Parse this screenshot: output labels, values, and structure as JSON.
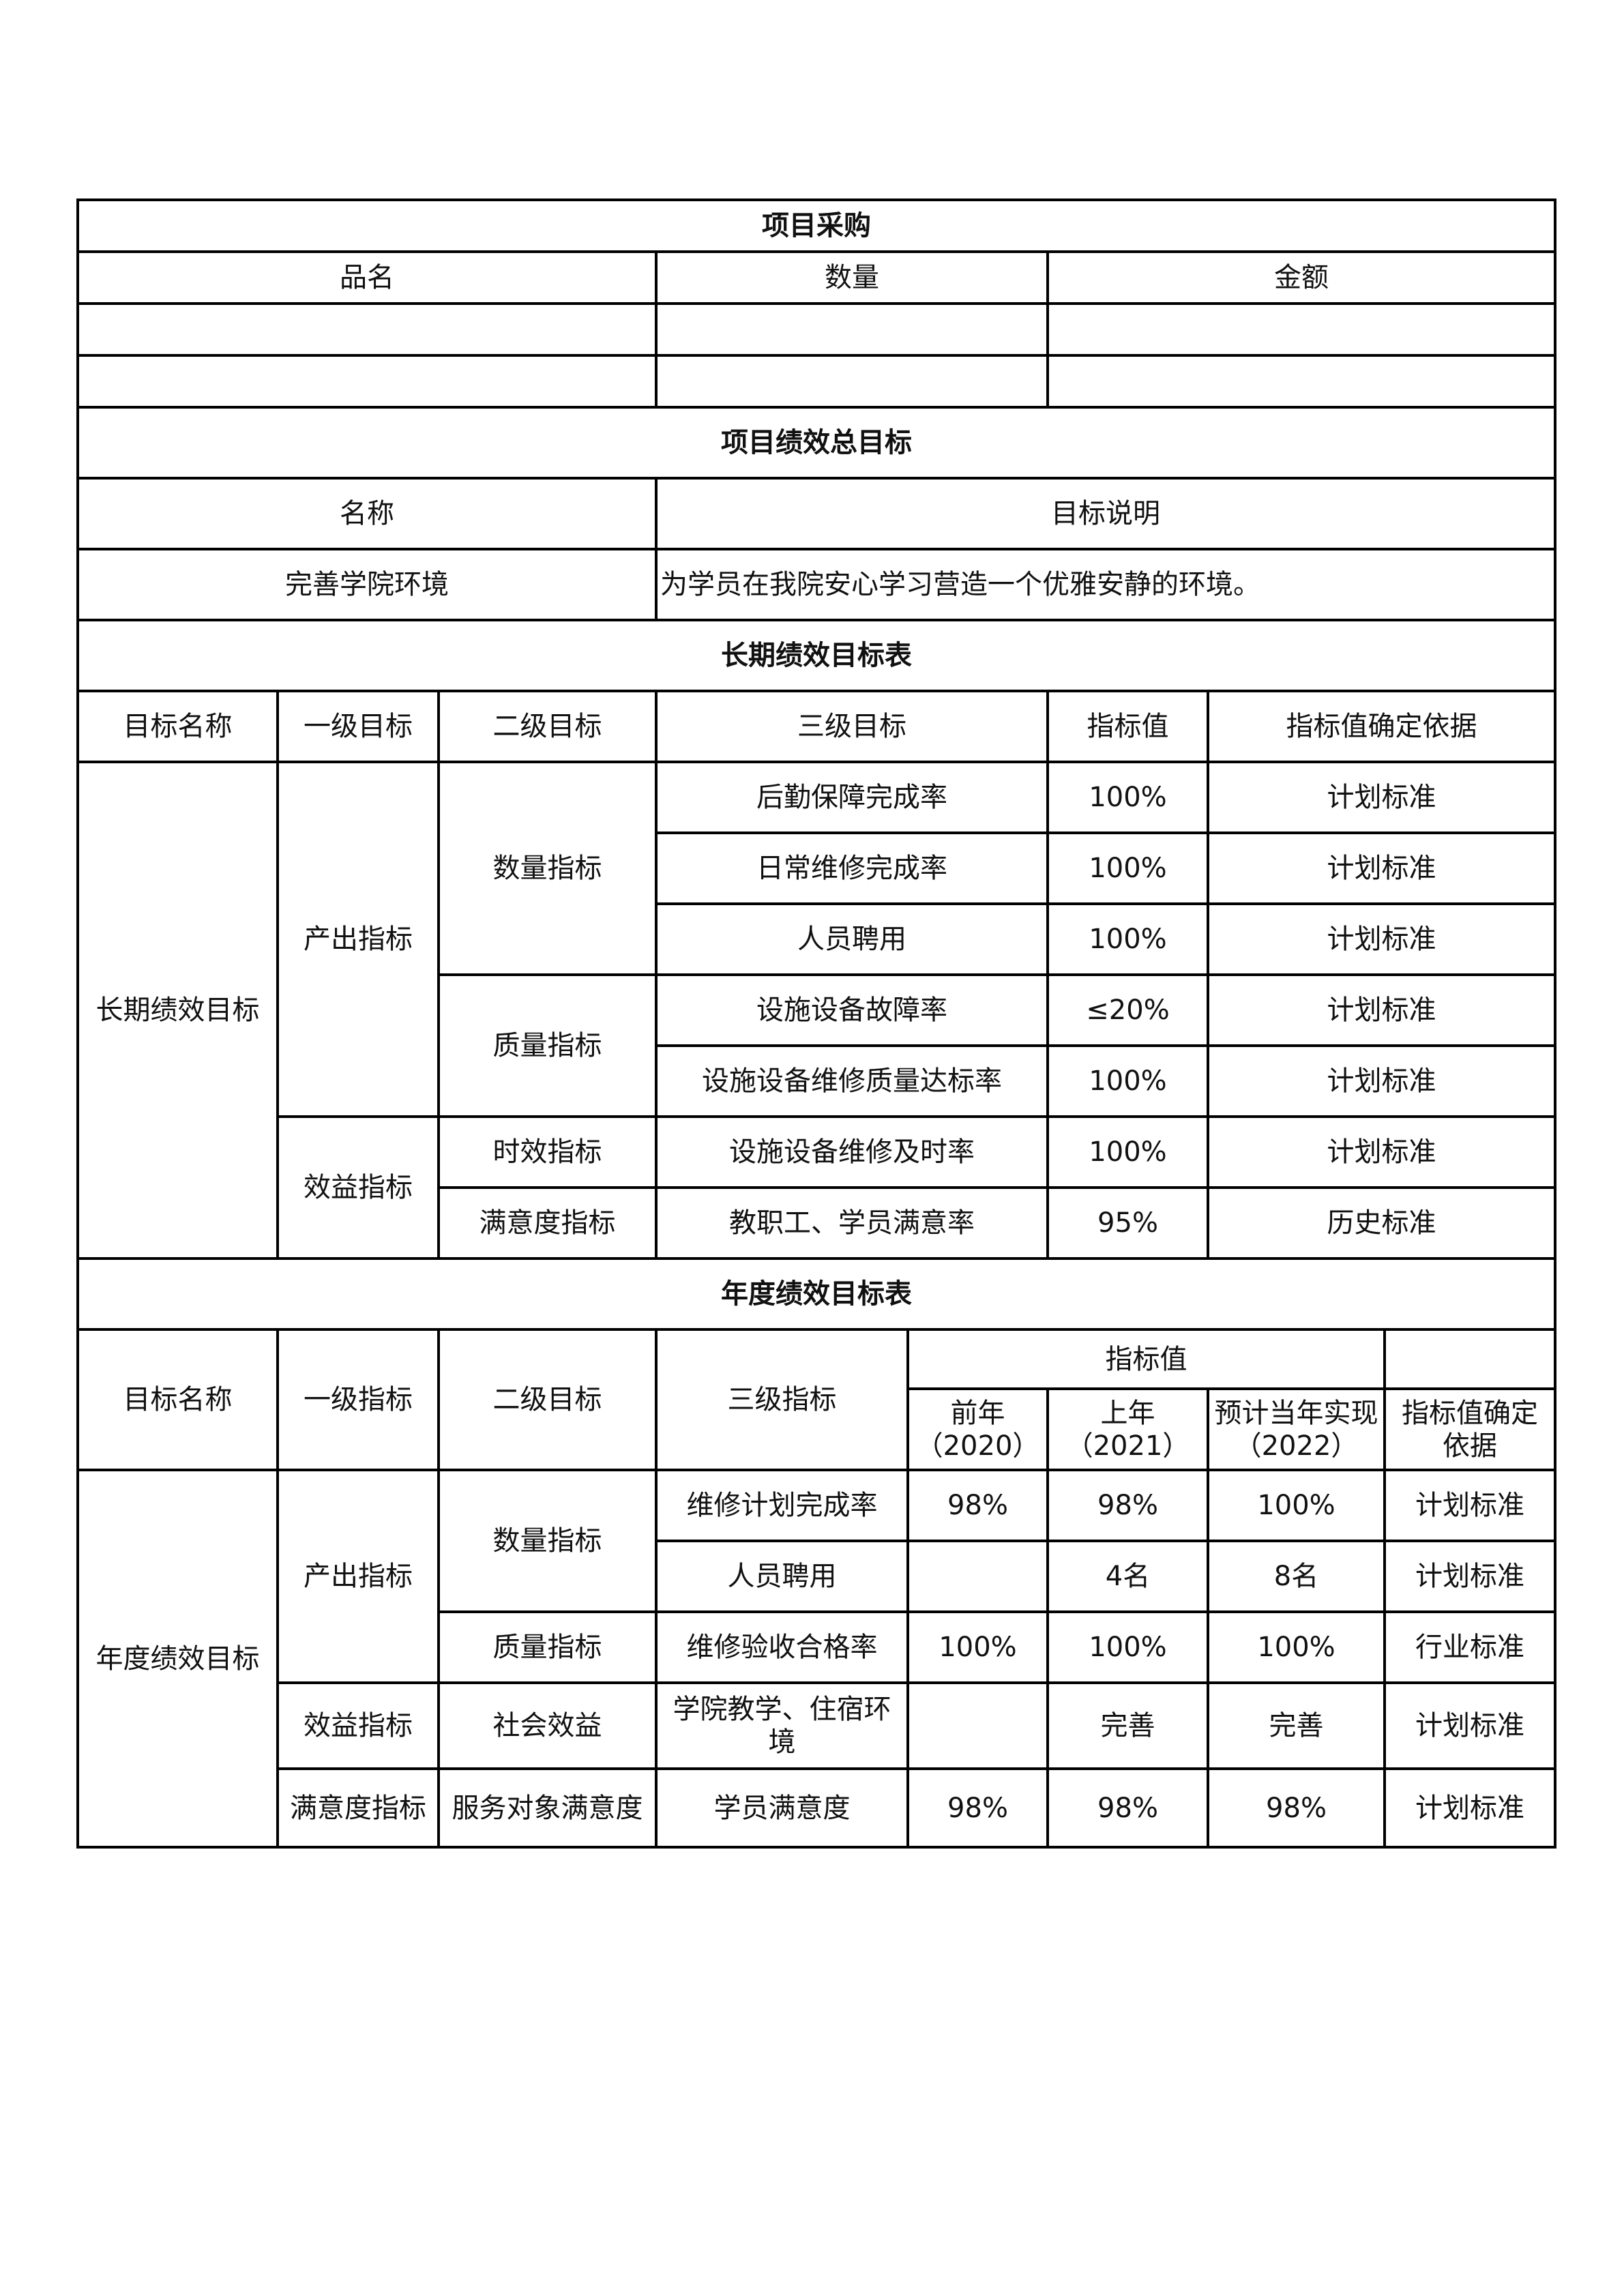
{
  "procurement": {
    "title": "项目采购",
    "headers": [
      "品名",
      "数量",
      "金额"
    ],
    "rows": [
      [
        "",
        "",
        ""
      ],
      [
        "",
        "",
        ""
      ]
    ]
  },
  "overall": {
    "title": "项目绩效总目标",
    "headers": [
      "名称",
      "目标说明"
    ],
    "name": "完善学院环境",
    "description": "为学员在我院安心学习营造一个优雅安静的环境。"
  },
  "long_term": {
    "title": "长期绩效目标表",
    "headers": [
      "目标名称",
      "一级目标",
      "二级目标",
      "三级目标",
      "指标值",
      "指标值确定依据"
    ],
    "goal_name": "长期绩效目标",
    "level1": [
      "产出指标",
      "效益指标"
    ],
    "level2": [
      "数量指标",
      "质量指标",
      "时效指标",
      "满意度指标"
    ],
    "rows": [
      {
        "level3": "后勤保障完成率",
        "value": "100%",
        "basis": "计划标准"
      },
      {
        "level3": "日常维修完成率",
        "value": "100%",
        "basis": "计划标准"
      },
      {
        "level3": "人员聘用",
        "value": "100%",
        "basis": "计划标准"
      },
      {
        "level3": "设施设备故障率",
        "value": "≤20%",
        "basis": "计划标准"
      },
      {
        "level3": "设施设备维修质量达标率",
        "value": "100%",
        "basis": "计划标准"
      },
      {
        "level3": "设施设备维修及时率",
        "value": "100%",
        "basis": "计划标准"
      },
      {
        "level3": "教职工、学员满意率",
        "value": "95%",
        "basis": "历史标准"
      }
    ]
  },
  "annual": {
    "title": "年度绩效目标表",
    "headers": [
      "目标名称",
      "一级指标",
      "二级目标",
      "三级指标",
      "指标值"
    ],
    "subheaders": [
      "前年（2020）",
      "上年（2021）",
      "预计当年实现（2022）",
      "指标值确定依据"
    ],
    "goal_name": "年度绩效目标",
    "level1": [
      "产出指标",
      "效益指标",
      "满意度指标"
    ],
    "level2": [
      "数量指标",
      "质量指标",
      "社会效益",
      "服务对象满意度"
    ],
    "rows": [
      {
        "level3": "维修计划完成率",
        "y2020": "98%",
        "y2021": "98%",
        "y2022": "100%",
        "basis": "计划标准"
      },
      {
        "level3": "人员聘用",
        "y2020": "",
        "y2021": "4名",
        "y2022": "8名",
        "basis": "计划标准"
      },
      {
        "level3": "维修验收合格率",
        "y2020": "100%",
        "y2021": "100%",
        "y2022": "100%",
        "basis": "行业标准"
      },
      {
        "level3": "学院教学、住宿环境",
        "y2020": "",
        "y2021": "完善",
        "y2022": "完善",
        "basis": "计划标准"
      },
      {
        "level3": "学员满意度",
        "y2020": "98%",
        "y2021": "98%",
        "y2022": "98%",
        "basis": "计划标准"
      }
    ]
  }
}
